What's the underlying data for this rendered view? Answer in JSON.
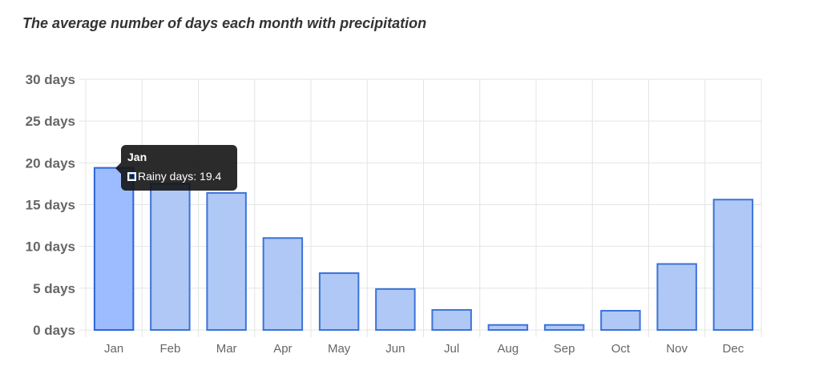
{
  "chart_data": {
    "type": "bar",
    "title": "The average number of days each month with precipitation",
    "categories": [
      "Jan",
      "Feb",
      "Mar",
      "Apr",
      "May",
      "Jun",
      "Jul",
      "Aug",
      "Sep",
      "Oct",
      "Nov",
      "Dec"
    ],
    "series": [
      {
        "name": "Rainy days",
        "values": [
          19.4,
          17.5,
          16.4,
          11.0,
          6.8,
          4.9,
          2.4,
          0.6,
          0.6,
          2.3,
          7.9,
          15.6
        ]
      }
    ],
    "ylim": [
      0,
      30
    ],
    "yticks": [
      "0 days",
      "5 days",
      "10 days",
      "15 days",
      "20 days",
      "25 days",
      "30 days"
    ],
    "grid": true,
    "legend": "none"
  },
  "colors": {
    "bar_fill": "#b0c8f5",
    "bar_fill_active": "#9dbcff",
    "bar_stroke": "#3b73d9",
    "bar_stroke_active": "#2c66db",
    "grid": "#e4e4e4",
    "tick_label": "#666666",
    "title": "#333333"
  },
  "tooltip": {
    "title": "Jan",
    "label": "Rainy days: 19.4"
  }
}
